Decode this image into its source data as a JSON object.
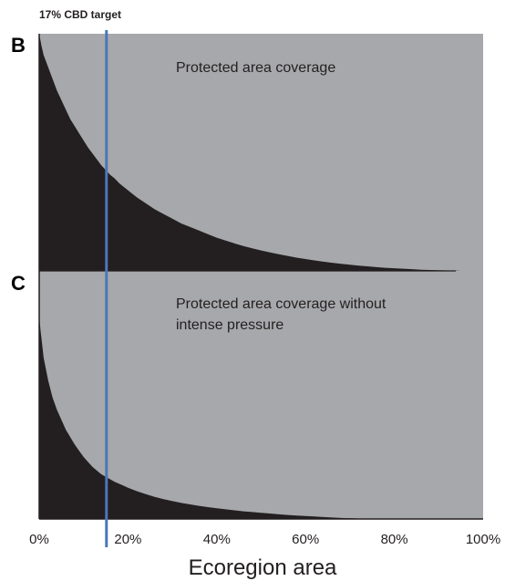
{
  "figure": {
    "target_label": "17% CBD target",
    "xlabel": "Ecoregion area",
    "target_x": 17,
    "colors": {
      "background_fill": "#a7a8ab",
      "bar_fill": "#231f20",
      "target_line": "#4a78b8",
      "axis": "#231f20"
    }
  },
  "chart_data": [
    {
      "type": "area",
      "panel_label": "B",
      "annotation": "Protected area coverage",
      "xlabel": "",
      "ylabel": "",
      "x_ticks": [],
      "xlim": [
        0,
        100
      ],
      "ylim": [
        0,
        100
      ],
      "grid": false,
      "series": [
        {
          "x": [
            0,
            0.5,
            1,
            2,
            3,
            4,
            5,
            6,
            7,
            8,
            9,
            10,
            11,
            12,
            13,
            14,
            15,
            16,
            17,
            18,
            19,
            20,
            22,
            24,
            26,
            28,
            30,
            32,
            34,
            36,
            38,
            40,
            42,
            44,
            46,
            48,
            50,
            52,
            54,
            56,
            58,
            60,
            62,
            64,
            66,
            68,
            70,
            72,
            74,
            76,
            78,
            80,
            82,
            84,
            86,
            88,
            90,
            92,
            94,
            95
          ],
          "y": [
            100,
            95,
            91,
            86,
            81,
            76,
            72,
            68,
            64,
            61,
            58,
            55,
            52,
            49.5,
            47,
            44.5,
            42.5,
            40.5,
            39,
            37,
            35.5,
            34,
            31,
            28.5,
            26,
            24,
            22,
            20,
            18.5,
            17,
            15.5,
            14,
            12.8,
            11.6,
            10.5,
            9.5,
            8.6,
            7.8,
            7,
            6.3,
            5.6,
            5,
            4.4,
            3.9,
            3.4,
            3,
            2.6,
            2.2,
            1.9,
            1.6,
            1.3,
            1.1,
            0.9,
            0.7,
            0.5,
            0.4,
            0.3,
            0.2,
            0.1,
            0
          ]
        }
      ]
    },
    {
      "type": "area",
      "panel_label": "C",
      "annotation": "Protected area coverage without intense pressure",
      "xlabel": "Ecoregion area",
      "ylabel": "",
      "x_ticks": [
        "0%",
        "20%",
        "40%",
        "60%",
        "80%",
        "100%"
      ],
      "x_tick_values": [
        0,
        20,
        40,
        60,
        80,
        100
      ],
      "xlim": [
        0,
        100
      ],
      "ylim": [
        0,
        100
      ],
      "grid": false,
      "series": [
        {
          "x": [
            0,
            0.3,
            0.5,
            1,
            2,
            3,
            4,
            5,
            6,
            7,
            8,
            9,
            10,
            11,
            12,
            13,
            14,
            15,
            16,
            17,
            18,
            19,
            20,
            22,
            24,
            26,
            28,
            30,
            32,
            34,
            36,
            38,
            40,
            42,
            44,
            46,
            48,
            50,
            52,
            54,
            56,
            58,
            60,
            62,
            64,
            66,
            68,
            70,
            72,
            74,
            76
          ],
          "y": [
            82,
            76,
            73,
            65,
            56,
            49,
            44,
            40,
            36,
            33,
            30,
            27.5,
            25,
            23,
            21,
            19.5,
            18,
            17,
            16,
            15,
            14.2,
            13.4,
            12.6,
            11.2,
            10,
            8.9,
            8,
            7.2,
            6.5,
            5.9,
            5.3,
            4.8,
            4.3,
            3.9,
            3.5,
            3.1,
            2.8,
            2.5,
            2.2,
            1.9,
            1.6,
            1.4,
            1.2,
            1,
            0.8,
            0.6,
            0.4,
            0.3,
            0.2,
            0.1,
            0
          ]
        }
      ]
    }
  ]
}
